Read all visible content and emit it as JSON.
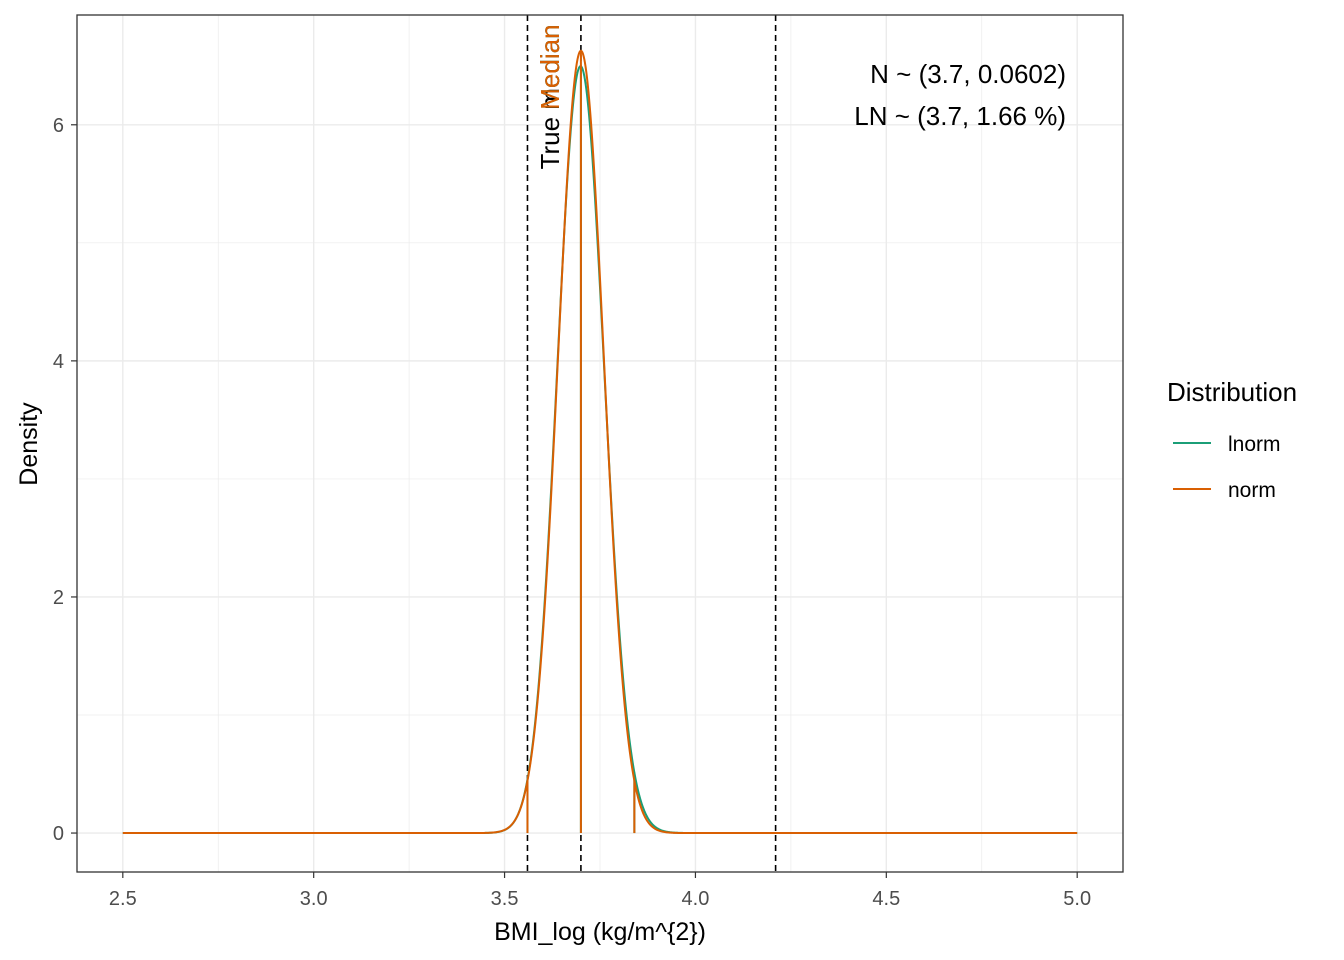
{
  "chart_data": {
    "type": "line",
    "title": "",
    "xlabel": "BMI_log (kg/m^{2})",
    "ylabel": "Density",
    "xlim": [
      2.38,
      5.12
    ],
    "ylim": [
      -0.33,
      6.93
    ],
    "x_ticks": [
      "2.5",
      "3.0",
      "3.5",
      "4.0",
      "4.5",
      "5.0"
    ],
    "y_ticks": [
      "0",
      "2",
      "4",
      "6"
    ],
    "grid": true,
    "legend": {
      "title": "Distribution",
      "position": "right",
      "entries": [
        {
          "label": "lnorm",
          "color": "#1b9e77"
        },
        {
          "label": "norm",
          "color": "#d95f02"
        }
      ]
    },
    "series": [
      {
        "name": "lnorm",
        "color": "#1b9e77",
        "distribution": "lognormal",
        "median": 3.7,
        "cv_percent": 1.66,
        "x_range": [
          2.5,
          5.0
        ],
        "shade_range": [
          3.56,
          3.84
        ]
      },
      {
        "name": "norm",
        "color": "#d95f02",
        "distribution": "normal",
        "mean": 3.7,
        "sd": 0.0602,
        "x_range": [
          2.5,
          5.0
        ],
        "shade_range": [
          3.56,
          3.84
        ]
      }
    ],
    "reference_lines": [
      {
        "x": 3.56,
        "style": "dashed",
        "color": "#000000"
      },
      {
        "x": 3.7,
        "style": "dashed",
        "color": "#000000",
        "label": "True median"
      },
      {
        "x": 4.21,
        "style": "dashed",
        "color": "#000000"
      }
    ],
    "series_median_labels": [
      {
        "text": "Median",
        "color": "#1b9e77",
        "x": 3.7
      },
      {
        "text": "Median",
        "color": "#d95f02",
        "x": 3.7
      }
    ],
    "annotations": [
      "N ~ (3.7, 0.0602)",
      "LN ~ (3.7, 1.66 %)"
    ]
  }
}
